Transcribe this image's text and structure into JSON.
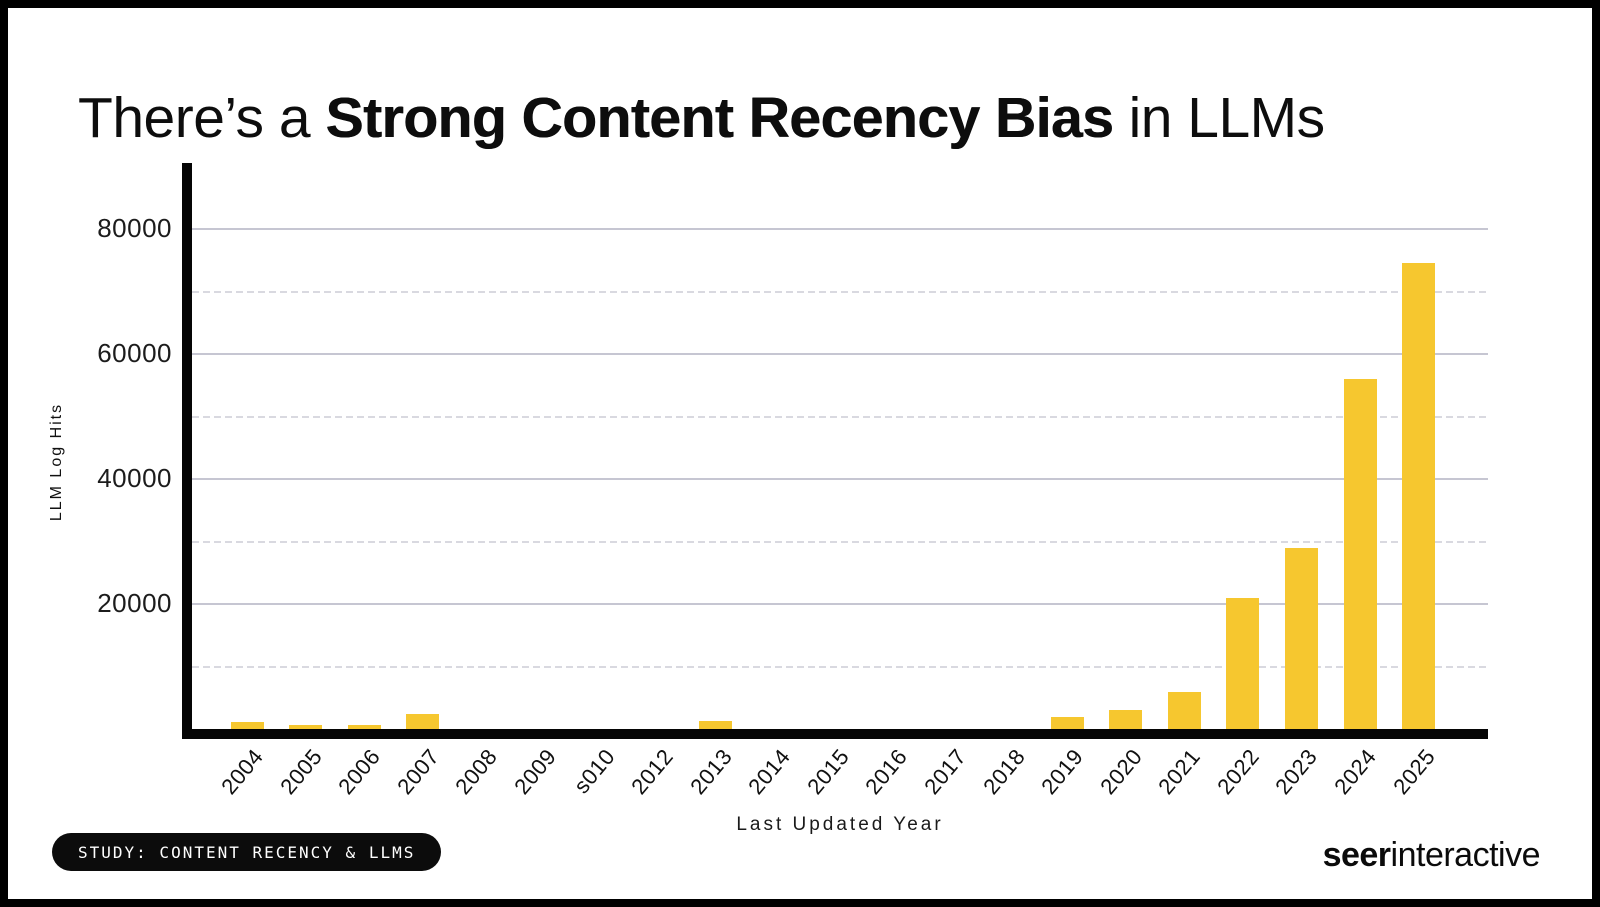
{
  "title": {
    "prefix": "There’s a ",
    "emphasis": "Strong Content Recency Bias",
    "suffix": " in LLMs"
  },
  "chart_data": {
    "type": "bar",
    "title": "There’s a Strong Content Recency Bias in LLMs",
    "xlabel": "Last Updated Year",
    "ylabel": "LLM Log Hits",
    "categories": [
      "2004",
      "2005",
      "2006",
      "2007",
      "2008",
      "2009",
      "s010",
      "2012",
      "2013",
      "2014",
      "2015",
      "2016",
      "2017",
      "2018",
      "2019",
      "2020",
      "2021",
      "2022",
      "2023",
      "2024",
      "2025"
    ],
    "values": [
      1100,
      600,
      600,
      2400,
      0,
      0,
      0,
      0,
      1300,
      0,
      0,
      0,
      0,
      0,
      1900,
      3000,
      6000,
      21000,
      29000,
      56000,
      74500
    ],
    "yticks_labeled": [
      20000,
      40000,
      60000,
      80000
    ],
    "yticks_dashed": [
      10000,
      30000,
      50000,
      70000
    ],
    "ylim": [
      0,
      90560
    ],
    "grid": true,
    "legend_position": "none",
    "bar_color": "#F6C72F"
  },
  "footer": {
    "badge_label": "STUDY: CONTENT RECENCY & LLMS",
    "brand_bold": "seer",
    "brand_regular": "interactive"
  },
  "colors": {
    "background": "#FFFFFF",
    "frame": "#000000",
    "bar": "#F6C72F",
    "grid_solid": "#C6C6D2",
    "grid_dashed": "#D9D9E0",
    "axis": "#050505",
    "text": "#111111",
    "badge_bg": "#0C0C0C",
    "badge_text": "#FFFFFF"
  }
}
